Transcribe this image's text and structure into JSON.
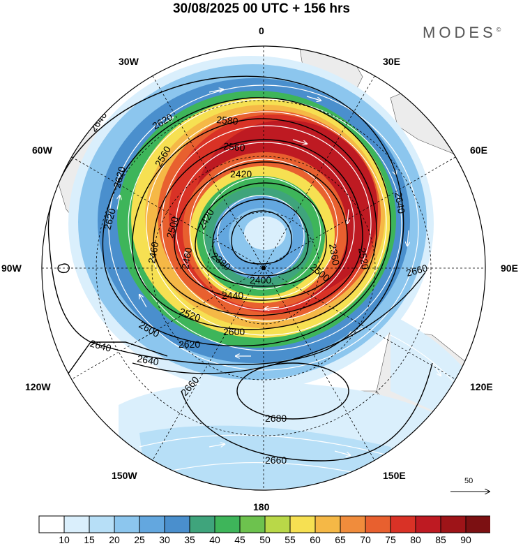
{
  "title": "30/08/2025  00 UTC  + 156 hrs",
  "brand": "MODES",
  "brand_mark": "©",
  "longitudes": {
    "n": "0",
    "s": "180",
    "w30": "30W",
    "e30": "30E",
    "w60": "60W",
    "e60": "60E",
    "w90": "90W",
    "e90": "90E",
    "w120": "120W",
    "e120": "120E",
    "w150": "150W",
    "e150": "150E"
  },
  "contour_labels": [
    "2640",
    "2620",
    "2620",
    "2620",
    "2580",
    "2560",
    "2560",
    "2420",
    "2500",
    "2520",
    "2420",
    "2380",
    "2640",
    "2660",
    "2400",
    "2440",
    "2520",
    "2600",
    "2600",
    "2620",
    "2640",
    "2640",
    "2660",
    "2680",
    "2660",
    "2360",
    "2460",
    "2500",
    "2460"
  ],
  "reference_vector": "50",
  "colorbar": {
    "labels": [
      "10",
      "15",
      "20",
      "25",
      "30",
      "35",
      "40",
      "45",
      "50",
      "55",
      "60",
      "65",
      "70",
      "75",
      "80",
      "85",
      "90"
    ],
    "colors": [
      "#ffffff",
      "#daeffc",
      "#b7dff7",
      "#8cc6ee",
      "#63a7df",
      "#4a8fcd",
      "#3fa47c",
      "#3eb55a",
      "#6dc24e",
      "#b9d848",
      "#f6e052",
      "#f5b846",
      "#f08c3c",
      "#e8602f",
      "#d93226",
      "#be1a22",
      "#9e1418",
      "#7c1012"
    ]
  }
}
